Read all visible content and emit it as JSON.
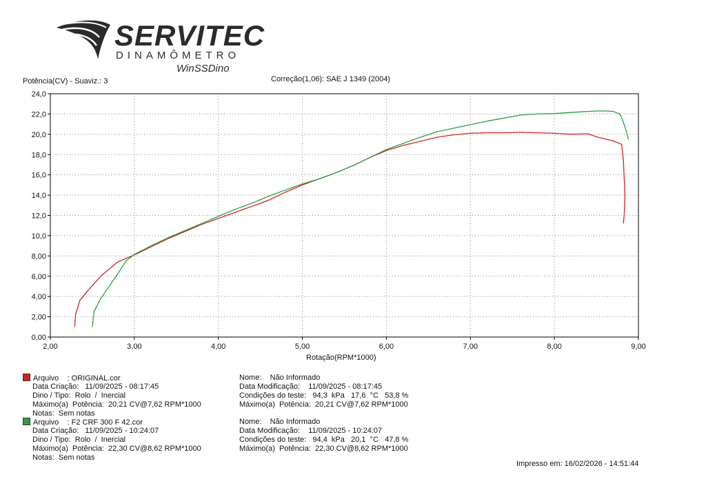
{
  "brand": {
    "name": "SERVITEC",
    "subtitle": "DINAMÔMETRO",
    "software": "WinSSDino"
  },
  "header": {
    "ylabel_text": "Potência(CV) - Suaviz.: 3",
    "correction_text": "Correção(1,06): SAE J 1349 (2004)"
  },
  "chart_data": {
    "type": "line",
    "xlabel": "Rotação(RPM*1000)",
    "ylabel": "Potência(CV)",
    "xlim": [
      2.0,
      9.0
    ],
    "ylim": [
      0.0,
      24.0
    ],
    "grid": true,
    "x_ticks": [
      "2,00",
      "3,00",
      "4,00",
      "5,00",
      "6,00",
      "7,00",
      "8,00",
      "9,00"
    ],
    "y_ticks": [
      "0,00",
      "2,00",
      "4,00",
      "6,00",
      "8,00",
      "10,0",
      "12,0",
      "14,0",
      "16,0",
      "18,0",
      "20,0",
      "22,0",
      "24,0"
    ],
    "series": [
      {
        "name": "ORIGINAL.cor",
        "color": "#d42020",
        "x": [
          2.29,
          2.3,
          2.35,
          2.45,
          2.6,
          2.8,
          2.9,
          3.0,
          3.2,
          3.4,
          3.6,
          3.8,
          4.0,
          4.2,
          4.4,
          4.6,
          4.8,
          5.0,
          5.2,
          5.4,
          5.6,
          5.8,
          6.0,
          6.2,
          6.4,
          6.6,
          6.8,
          7.0,
          7.2,
          7.4,
          7.6,
          7.8,
          8.0,
          8.2,
          8.4,
          8.5,
          8.6,
          8.7,
          8.8,
          8.82,
          8.84,
          8.83,
          8.82
        ],
        "y": [
          1.0,
          2.2,
          3.6,
          4.6,
          6.0,
          7.4,
          7.75,
          8.1,
          8.9,
          9.7,
          10.4,
          11.1,
          11.7,
          12.3,
          12.9,
          13.5,
          14.3,
          15.0,
          15.6,
          16.2,
          16.9,
          17.7,
          18.4,
          18.9,
          19.3,
          19.7,
          19.95,
          20.1,
          20.15,
          20.15,
          20.2,
          20.15,
          20.1,
          20.0,
          20.05,
          19.75,
          19.55,
          19.35,
          19.0,
          17.5,
          14.0,
          12.0,
          11.2
        ]
      },
      {
        "name": "F2 CRF 300 F 42.cor",
        "color": "#2e9c46",
        "x": [
          2.5,
          2.52,
          2.6,
          2.7,
          2.8,
          2.9,
          3.0,
          3.2,
          3.4,
          3.6,
          3.8,
          4.0,
          4.2,
          4.4,
          4.6,
          4.8,
          5.0,
          5.2,
          5.4,
          5.6,
          5.8,
          6.0,
          6.2,
          6.4,
          6.6,
          6.8,
          7.0,
          7.2,
          7.4,
          7.6,
          7.8,
          8.0,
          8.2,
          8.4,
          8.5,
          8.6,
          8.62,
          8.7,
          8.78,
          8.82,
          8.86,
          8.88
        ],
        "y": [
          1.0,
          2.5,
          3.8,
          5.0,
          6.2,
          7.5,
          8.15,
          9.0,
          9.8,
          10.5,
          11.2,
          11.9,
          12.6,
          13.2,
          13.9,
          14.5,
          15.1,
          15.6,
          16.2,
          16.9,
          17.7,
          18.5,
          19.1,
          19.7,
          20.25,
          20.6,
          20.95,
          21.3,
          21.6,
          21.9,
          22.0,
          22.05,
          22.15,
          22.25,
          22.3,
          22.3,
          22.3,
          22.25,
          22.0,
          21.2,
          20.2,
          19.5
        ]
      }
    ]
  },
  "legend": {
    "entries": [
      {
        "color": "#d42020",
        "left_lines": [
          "Arquivo    : ORIGINAL.cor",
          "Data Criação:   11/09/2025 - 08:17:45",
          "Dino / Tipo:  Rolo  /  Inercial",
          "Máximo(a)  Potência:  20,21 CV@7,62 RPM*1000",
          "Notas:  Sem notas"
        ],
        "right_lines": [
          "Nome:    Não Informado",
          "Data Modificação:    11/09/2025 - 08:17:45",
          "Condições do teste:   94,3  kPa   17,6  °C   53,8 %",
          "Máximo(a)  Potência:  20,21 CV@7,62 RPM*1000"
        ]
      },
      {
        "color": "#2e9c46",
        "left_lines": [
          "Arquivo    : F2 CRF 300 F 42.cor",
          "Data Criação:   11/09/2025 - 10:24:07",
          "Dino / Tipo:  Rolo  /  Inercial",
          "Máximo(a)  Potência:  22,30 CV@8,62 RPM*1000",
          "Notas:  Sem notas"
        ],
        "right_lines": [
          "Nome:    Não Informado",
          "Data Modificação:    11/09/2025 - 10:24:07",
          "Condições do teste:   94,4  kPa   20,1  °C   47,8 %",
          "Máximo(a)  Potência:  22,30 CV@8,62 RPM*1000"
        ]
      }
    ]
  },
  "footer": {
    "printed_text": "Impresso em: 16/02/2026 - 14:51:44"
  }
}
